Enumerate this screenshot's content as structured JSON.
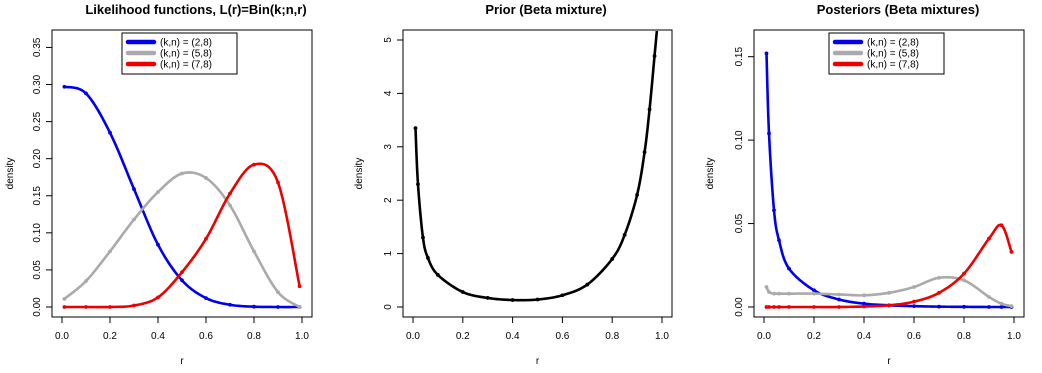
{
  "chart_data": [
    {
      "type": "line",
      "title": "Likelihood functions, L(r)=Bin(k;n,r)",
      "xlabel": "r",
      "ylabel": "density",
      "xlim": [
        0,
        1
      ],
      "ylim": [
        0,
        0.36
      ],
      "xticks": [
        "0.0",
        "0.2",
        "0.4",
        "0.6",
        "0.8",
        "1.0"
      ],
      "yticks": [
        "0.00",
        "0.05",
        "0.10",
        "0.15",
        "0.20",
        "0.25",
        "0.30",
        "0.35"
      ],
      "legend": "top-center",
      "x": [
        0.01,
        0.1,
        0.2,
        0.3,
        0.4,
        0.5,
        0.6,
        0.7,
        0.8,
        0.9,
        0.99
      ],
      "series": [
        {
          "name": "(k,n) = (2,8)",
          "color": "#0000ee",
          "values": [
            0.297,
            0.288,
            0.235,
            0.159,
            0.084,
            0.036,
            0.012,
            0.003,
            0.0004,
            0.0,
            0.0
          ]
        },
        {
          "name": "(k,n) = (5,8)",
          "color": "#aaaaaa",
          "values": [
            0.011,
            0.035,
            0.075,
            0.118,
            0.155,
            0.18,
            0.174,
            0.137,
            0.075,
            0.02,
            0.0
          ]
        },
        {
          "name": "(k,n) = (7,8)",
          "color": "#ee0000",
          "values": [
            0.0,
            0.0,
            0.0,
            0.002,
            0.013,
            0.047,
            0.092,
            0.153,
            0.192,
            0.168,
            0.028
          ]
        }
      ]
    },
    {
      "type": "line",
      "title": "Prior (Beta mixture)",
      "xlabel": "r",
      "ylabel": "density",
      "xlim": [
        0,
        1
      ],
      "ylim": [
        0,
        5
      ],
      "xticks": [
        "0.0",
        "0.2",
        "0.4",
        "0.6",
        "0.8",
        "1.0"
      ],
      "yticks": [
        "0",
        "1",
        "2",
        "3",
        "4",
        "5"
      ],
      "x": [
        0.01,
        0.02,
        0.04,
        0.06,
        0.1,
        0.2,
        0.3,
        0.4,
        0.5,
        0.6,
        0.7,
        0.8,
        0.85,
        0.9,
        0.93,
        0.95,
        0.97,
        0.98
      ],
      "series": [
        {
          "color": "#000000",
          "values": [
            3.35,
            2.3,
            1.3,
            0.92,
            0.6,
            0.28,
            0.17,
            0.13,
            0.14,
            0.22,
            0.42,
            0.9,
            1.35,
            2.1,
            2.9,
            3.7,
            4.7,
            5.2
          ]
        }
      ]
    },
    {
      "type": "line",
      "title": "Posteriors (Beta mixtures)",
      "xlabel": "r",
      "ylabel": "density",
      "xlim": [
        0,
        1
      ],
      "ylim": [
        0,
        0.16
      ],
      "xticks": [
        "0.0",
        "0.2",
        "0.4",
        "0.6",
        "0.8",
        "1.0"
      ],
      "yticks": [
        "0.00",
        "0.05",
        "0.10",
        "0.15"
      ],
      "legend": "top-center",
      "x": [
        0.01,
        0.02,
        0.04,
        0.06,
        0.1,
        0.2,
        0.3,
        0.4,
        0.5,
        0.6,
        0.7,
        0.8,
        0.9,
        0.95,
        0.99
      ],
      "series": [
        {
          "name": "(k,n) = (2,8)",
          "color": "#0000ee",
          "values": [
            0.152,
            0.104,
            0.058,
            0.04,
            0.023,
            0.01,
            0.0045,
            0.002,
            0.001,
            0.0005,
            0.0002,
            0.0001,
            0.0,
            0.0,
            0.0
          ]
        },
        {
          "name": "(k,n) = (5,8)",
          "color": "#aaaaaa",
          "values": [
            0.012,
            0.009,
            0.008,
            0.008,
            0.008,
            0.008,
            0.0075,
            0.007,
            0.0085,
            0.012,
            0.0175,
            0.016,
            0.006,
            0.002,
            0.0005
          ]
        },
        {
          "name": "(k,n) = (7,8)",
          "color": "#ee0000",
          "values": [
            0.0,
            0.0,
            0.0,
            0.0,
            0.0,
            0.0,
            0.0,
            0.0003,
            0.001,
            0.0032,
            0.0085,
            0.02,
            0.041,
            0.049,
            0.033
          ]
        }
      ]
    }
  ]
}
